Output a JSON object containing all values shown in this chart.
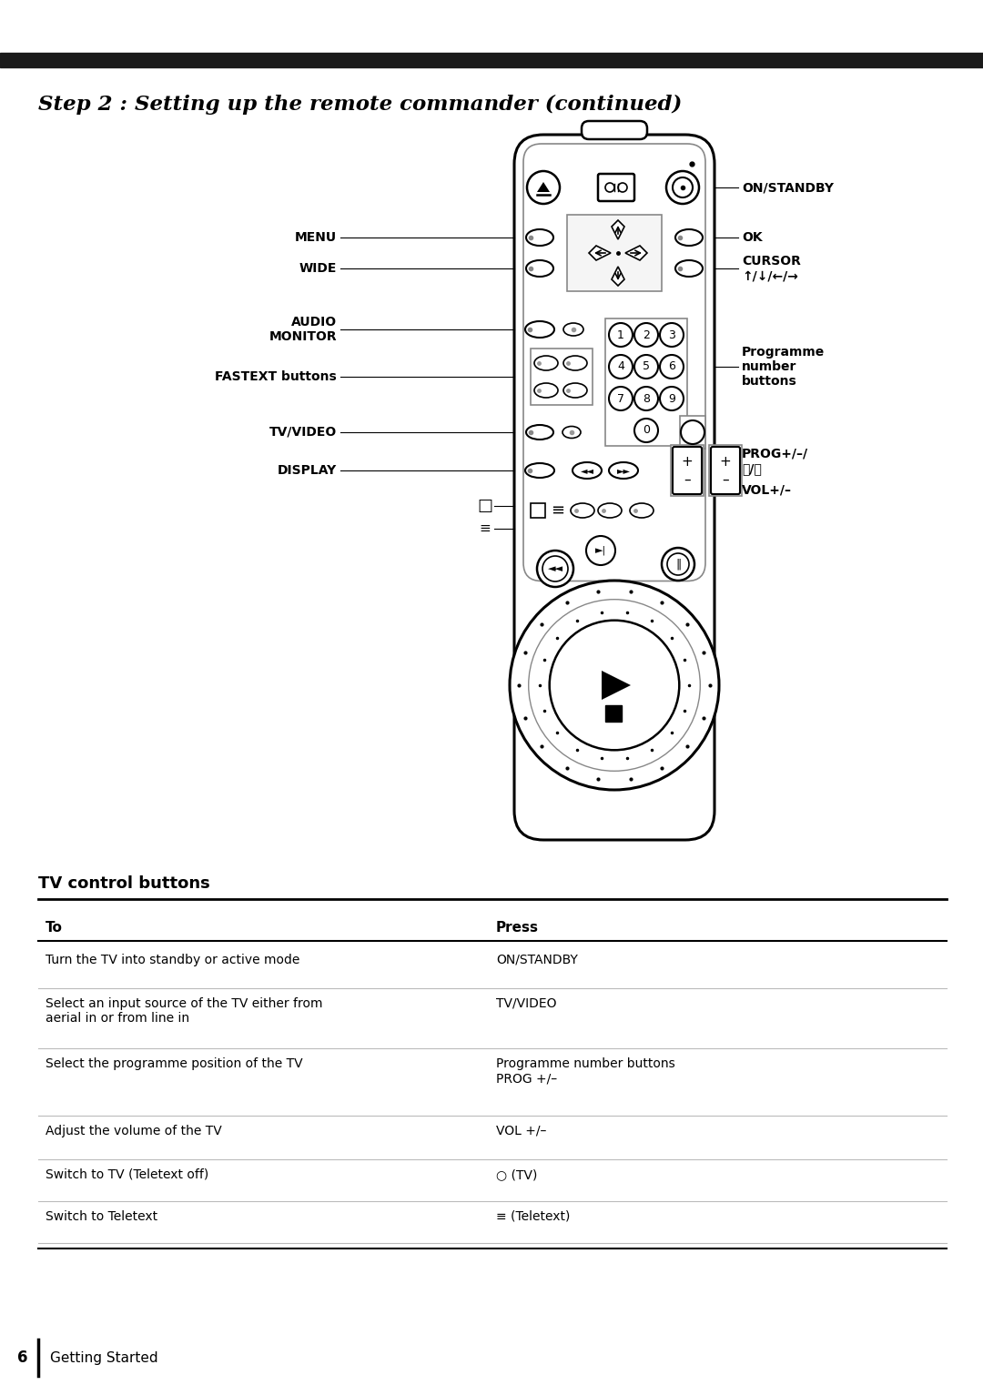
{
  "bg_color": "#ffffff",
  "header_bar_color": "#1a1a1a",
  "title": "Step 2 : Setting up the remote commander (continued)",
  "table_section_title": "TV control buttons",
  "table_header": [
    "To",
    "Press"
  ],
  "table_rows": [
    [
      "Turn the TV into standby or active mode",
      "ON/STANDBY"
    ],
    [
      "Select an input source of the TV either from\naerial in or from line in",
      "TV/VIDEO"
    ],
    [
      "Select the programme position of the TV",
      "Programme number buttons\nPROG +/–"
    ],
    [
      "Adjust the volume of the TV",
      "VOL +/–"
    ],
    [
      "Switch to TV (Teletext off)",
      "○ (TV)"
    ],
    [
      "Switch to Teletext",
      "≡ (Teletext)"
    ]
  ],
  "footer_number": "6",
  "footer_text": "Getting Started"
}
